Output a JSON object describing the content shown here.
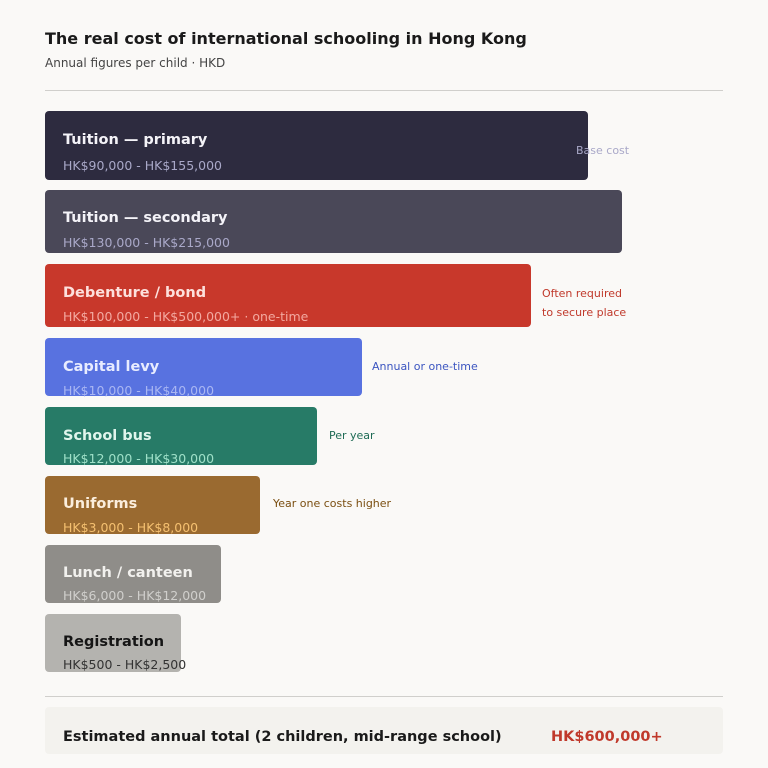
{
  "header": {
    "title": "The real cost of international schooling in Hong Kong",
    "subtitle": "Annual figures per child · HKD"
  },
  "items": [
    {
      "label": "Tuition — primary",
      "range": "HK$90,000 - HK$155,000",
      "note": "Base cost",
      "color": "#2d2b3f"
    },
    {
      "label": "Tuition — secondary",
      "range": "HK$130,000 - HK$215,000",
      "note": "",
      "color": "#4a4858"
    },
    {
      "label": "Debenture / bond",
      "range": "HK$100,000 - HK$500,000+  · one-time",
      "note_line1": "Often required",
      "note_line2": "to secure place",
      "color": "#c8382b"
    },
    {
      "label": "Capital levy",
      "range": "HK$10,000 - HK$40,000",
      "note": "Annual or one-time",
      "color": "#5872e0"
    },
    {
      "label": "School bus",
      "range": "HK$12,000 - HK$30,000",
      "note": "Per year",
      "color": "#277b67"
    },
    {
      "label": "Uniforms",
      "range": "HK$3,000 - HK$8,000",
      "note": "Year one costs higher",
      "color": "#9a6a30"
    },
    {
      "label": "Lunch / canteen",
      "range": "HK$6,000 - HK$12,000",
      "note": "",
      "color": "#8f8d89"
    },
    {
      "label": "Registration",
      "range": "HK$500 - HK$2,500",
      "note": "",
      "color": "#b4b3af"
    }
  ],
  "total": {
    "label": "Estimated annual total (2 children, mid-range school)",
    "value": "HK$600,000+"
  }
}
